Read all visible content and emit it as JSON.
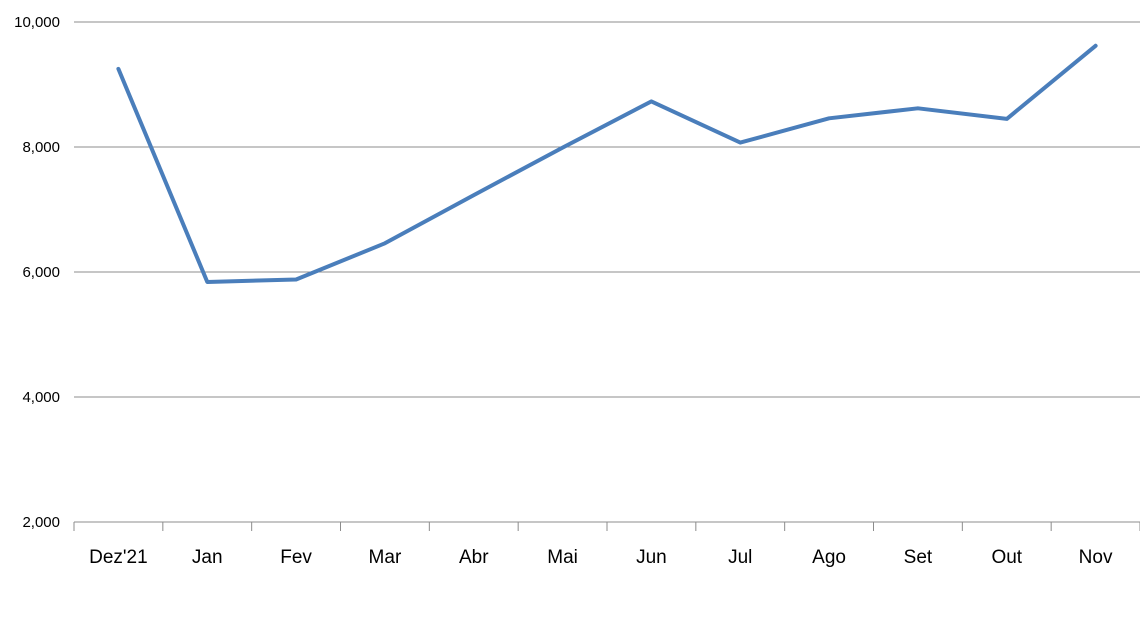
{
  "chart_data": {
    "type": "line",
    "title": "",
    "xlabel": "",
    "ylabel": "",
    "categories": [
      "Dez'21",
      "Jan",
      "Fev",
      "Mar",
      "Abr",
      "Mai",
      "Jun",
      "Jul",
      "Ago",
      "Set",
      "Out",
      "Nov"
    ],
    "series": [
      {
        "values": [
          9250,
          5840,
          5880,
          6460,
          7230,
          7990,
          8730,
          8070,
          8460,
          8620,
          8450,
          9620
        ],
        "color": "#4a7ebb"
      }
    ],
    "ylim": [
      2000,
      10000
    ],
    "yticks": [
      2000,
      4000,
      6000,
      8000,
      10000
    ],
    "ytick_labels": [
      "2,000",
      "4,000",
      "6,000",
      "8,000",
      "10,000"
    ],
    "grid": true,
    "legend": "none"
  }
}
